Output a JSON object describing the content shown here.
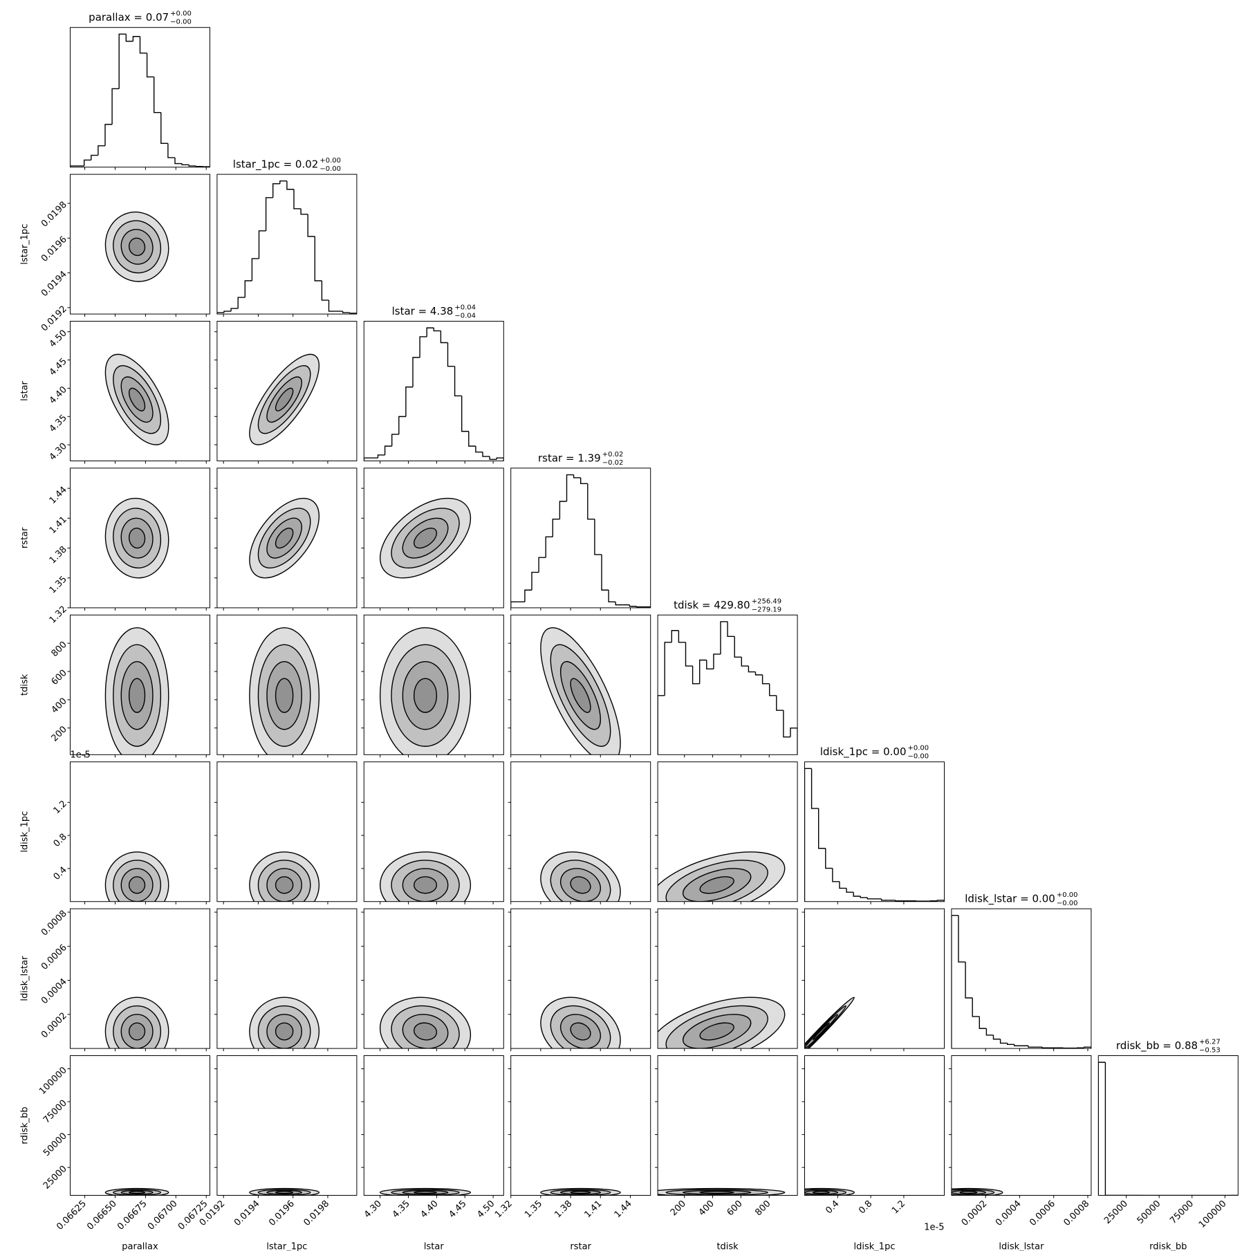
{
  "chart_data": {
    "type": "corner",
    "levels": [
      0.5,
      1,
      1.5,
      2
    ],
    "parameters": [
      {
        "name": "parallax",
        "title": "parallax = 0.07",
        "plus": "+0.00",
        "minus": "−0.00",
        "mean": 0.06668,
        "sd": 0.00013,
        "lim": [
          0.06613,
          0.06728
        ],
        "ticks": [
          0.06625,
          {
            "value": 0.0665,
            "label": "0.06650"
          },
          0.06675,
          {
            "value": 0.067,
            "label": "0.06700"
          },
          0.06725
        ],
        "bins": [
          0.06613,
          0.0661875,
          0.066245,
          0.0663025,
          0.06636,
          0.0664175,
          0.066475,
          0.0665325,
          0.06659,
          0.0666475,
          0.066705,
          0.0667625,
          0.06682,
          0.0668775,
          0.066935,
          0.0669925,
          0.06705,
          0.0671075,
          0.067165,
          0.0672225,
          0.06728
        ],
        "counts": [
          0.5,
          0.5,
          3,
          5,
          9,
          18,
          33,
          56,
          53,
          55,
          48,
          38,
          23,
          10,
          4,
          1.5,
          1,
          0.5,
          0.3,
          0.2
        ]
      },
      {
        "name": "lstar_1pc",
        "title": "lstar_1pc = 0.02",
        "plus": "+0.00",
        "minus": "−0.00",
        "mean": 0.01955,
        "sd": 0.0001,
        "lim": [
          0.019163,
          0.019967
        ],
        "ticks": [
          0.0192,
          0.0194,
          0.0196,
          0.0198
        ],
        "bins": [
          0.019163,
          0.0192032,
          0.0192434,
          0.0192836,
          0.0193238,
          0.019364,
          0.0194042,
          0.0194444,
          0.0194846,
          0.0195248,
          0.019565,
          0.0196052,
          0.0196454,
          0.0196856,
          0.0197258,
          0.019766,
          0.0198062,
          0.0198464,
          0.0198866,
          0.0199268,
          0.019967
        ],
        "counts": [
          0.5,
          1,
          2,
          6,
          12,
          20,
          30,
          42,
          47,
          48,
          45,
          38,
          36,
          28,
          12,
          5,
          1,
          1,
          0.5,
          0.3
        ]
      },
      {
        "name": "lstar",
        "title": "lstar = 4.38",
        "plus": "+0.04",
        "minus": "−0.04",
        "mean": 4.38,
        "sd": 0.04,
        "lim": [
          4.2714,
          4.5186
        ],
        "ticks": [
          {
            "value": 4.3,
            "label": "4.30"
          },
          4.35,
          {
            "value": 4.4,
            "label": "4.40"
          },
          4.45,
          {
            "value": 4.5,
            "label": "4.50"
          }
        ],
        "bins": [
          4.2714,
          4.28376,
          4.29612,
          4.30848,
          4.32084,
          4.3332,
          4.34556,
          4.35792,
          4.37028,
          4.38264,
          4.395,
          4.40736,
          4.41972,
          4.43208,
          4.44444,
          4.4568,
          4.46916,
          4.48152,
          4.49388,
          4.50624,
          4.5186
        ],
        "counts": [
          1,
          1,
          2,
          5,
          9,
          15,
          25,
          35,
          42,
          45,
          44,
          40,
          32,
          22,
          10,
          5,
          3,
          1.5,
          0.5,
          1
        ]
      },
      {
        "name": "rstar",
        "title": "rstar = 1.39",
        "plus": "+0.02",
        "minus": "−0.02",
        "mean": 1.39,
        "sd": 0.02,
        "lim": [
          1.32,
          1.4603
        ],
        "ticks": [
          1.32,
          1.35,
          1.38,
          1.41,
          1.44
        ],
        "bins": [
          1.32,
          1.327015,
          1.33403,
          1.341045,
          1.34806,
          1.355075,
          1.36209,
          1.369105,
          1.37612,
          1.383135,
          1.39015,
          1.397165,
          1.40418,
          1.411195,
          1.41821,
          1.425225,
          1.43224,
          1.439255,
          1.44627,
          1.453285,
          1.4603
        ],
        "counts": [
          2,
          2,
          6,
          12,
          17,
          24,
          30,
          36,
          45,
          44,
          42,
          30,
          18,
          6,
          2,
          1,
          1,
          0.5,
          0.3,
          0.3
        ]
      },
      {
        "name": "tdisk",
        "title": "tdisk = 429.80",
        "plus": "+256.49",
        "minus": "−279.19",
        "mean": 430,
        "sd": 240,
        "lim": [
          11,
          1000
        ],
        "ticks": [
          200,
          400,
          600,
          800
        ],
        "bins": [
          11,
          60.45,
          109.9,
          159.35,
          208.8,
          258.25,
          307.7,
          357.15,
          406.6,
          456.05,
          505.5,
          554.95,
          604.4,
          653.85,
          703.3,
          752.75,
          802.2,
          851.65,
          901.1,
          950.55,
          1000
        ],
        "counts": [
          20,
          38,
          42,
          38,
          30,
          24,
          32,
          29,
          34,
          45,
          40,
          33,
          30,
          28,
          27,
          24,
          20,
          15,
          6,
          9
        ]
      },
      {
        "name": "ldisk_1pc",
        "title": "ldisk_1pc = 0.00",
        "plus": "+0.00",
        "minus": "−0.00",
        "mean": 2e-06,
        "sd": 2e-06,
        "lim": [
          0,
          1.69e-05
        ],
        "offset_label": "1e-5",
        "ticks": [
          {
            "value": 4e-06,
            "label": "0.4"
          },
          {
            "value": 8e-06,
            "label": "0.8"
          },
          {
            "value": 1.2e-05,
            "label": "1.2"
          }
        ],
        "bins": [
          0,
          8.45e-07,
          1.69e-06,
          2.535e-06,
          3.38e-06,
          4.225e-06,
          5.07e-06,
          5.915e-06,
          6.76e-06,
          7.605e-06,
          8.45e-06,
          9.295e-06,
          1.014e-05,
          1.0985e-05,
          1.183e-05,
          1.2675e-05,
          1.352e-05,
          1.4365e-05,
          1.521e-05,
          1.6055e-05,
          1.69e-05
        ],
        "counts": [
          100,
          70,
          40,
          25,
          15,
          10,
          7,
          4,
          3,
          2,
          2,
          1,
          1,
          0.5,
          0.5,
          0.5,
          0.3,
          0.3,
          0.5,
          1
        ]
      },
      {
        "name": "ldisk_lstar",
        "title": "ldisk_lstar = 0.00",
        "plus": "+0.00",
        "minus": "−0.00",
        "mean": 0.0001,
        "sd": 0.0001,
        "lim": [
          0,
          0.00082
        ],
        "ticks": [
          0.0002,
          0.0004,
          0.0006,
          0.0008
        ],
        "bins": [
          0,
          4.1e-05,
          8.2e-05,
          0.000123,
          0.000164,
          0.000205,
          0.000246,
          0.000287,
          0.000328,
          0.000369,
          0.00041,
          0.000451,
          0.000492,
          0.000533,
          0.000574,
          0.000615,
          0.000656,
          0.000697,
          0.000738,
          0.000779,
          0.00082
        ],
        "counts": [
          100,
          65,
          38,
          24,
          15,
          10,
          7,
          4,
          3,
          2,
          2,
          1,
          1,
          0.5,
          0.5,
          0.5,
          0.3,
          0.3,
          0.5,
          1
        ]
      },
      {
        "name": "rdisk_bb",
        "title": "rdisk_bb = 0.88",
        "plus": "+6.27",
        "minus": "−0.53",
        "mean": 6000,
        "sd": 1500,
        "lim": [
          3800,
          110000
        ],
        "ticks": [
          25000,
          50000,
          75000,
          100000
        ],
        "bins": [
          3800,
          9110,
          14420,
          19730,
          25040,
          30350,
          35660,
          40970,
          46280,
          51590,
          56900,
          62210,
          67520,
          72830,
          78140,
          83450,
          88760,
          94070,
          99380,
          104690,
          110000
        ],
        "counts": [
          100,
          0,
          0,
          0,
          0,
          0,
          0,
          0,
          0,
          0,
          0,
          0,
          0,
          0,
          0,
          0,
          0,
          0,
          0,
          0
        ]
      }
    ],
    "correlations": [
      [
        -0.05
      ],
      [
        -0.6,
        0.75
      ],
      [
        -0.05,
        0.55,
        0.5
      ],
      [
        0,
        0,
        0,
        -0.7
      ],
      [
        0,
        0,
        0,
        -0.2,
        0.5
      ],
      [
        0,
        0,
        -0.1,
        -0.25,
        0.5,
        0.99
      ],
      [
        0,
        0,
        0,
        0,
        0,
        0,
        0
      ]
    ]
  }
}
